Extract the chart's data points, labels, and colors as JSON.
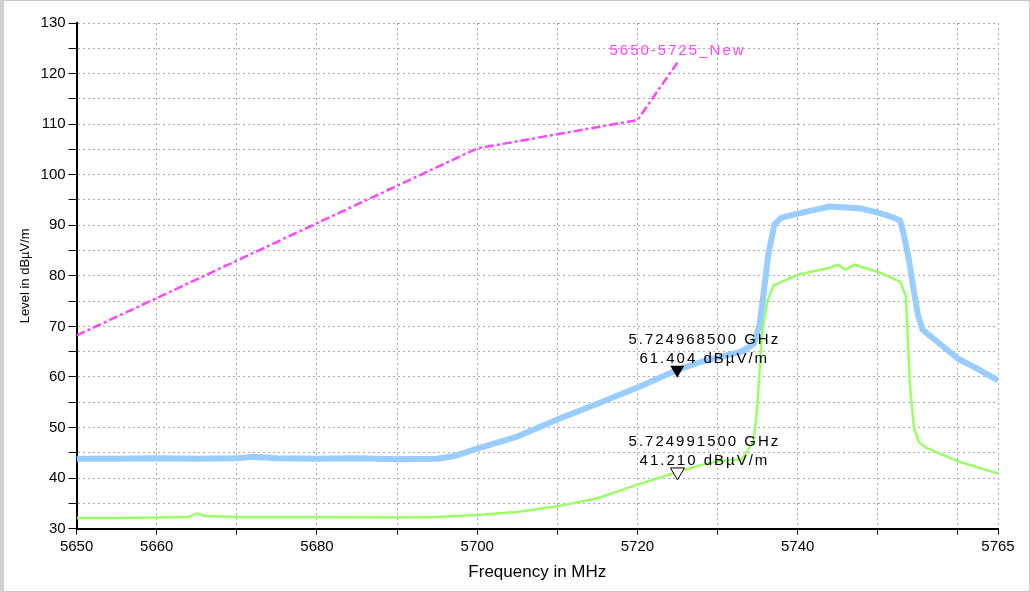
{
  "chart_data": {
    "type": "line",
    "xlabel": "Frequency in MHz",
    "ylabel": "Level in dBµV/m",
    "xlim": [
      5650,
      5765
    ],
    "xticks": [
      5650,
      5660,
      {
        "value": 5670,
        "label": null
      },
      5680,
      {
        "value": 5690,
        "label": null
      },
      5700,
      {
        "value": 5710,
        "label": null
      },
      5720,
      {
        "value": 5730,
        "label": null
      },
      5740,
      {
        "value": 5750,
        "label": null
      },
      {
        "value": 5760,
        "label": null
      },
      5765
    ],
    "ylim": [
      30,
      130
    ],
    "yticks": [
      30,
      {
        "value": 35,
        "label": null
      },
      40,
      {
        "value": 45,
        "label": null
      },
      50,
      {
        "value": 55,
        "label": null
      },
      60,
      {
        "value": 65,
        "label": null
      },
      70,
      {
        "value": 75,
        "label": null
      },
      80,
      {
        "value": 85,
        "label": null
      },
      90,
      {
        "value": 95,
        "label": null
      },
      100,
      {
        "value": 105,
        "label": null
      },
      110,
      {
        "value": 115,
        "label": null
      },
      120,
      {
        "value": 125,
        "label": null
      },
      130
    ],
    "grid": true,
    "legend": false,
    "marker": "none",
    "series": [
      {
        "color": "#99ccff",
        "x": [
          5650,
          5655,
          5660,
          5665,
          5670,
          5672,
          5675,
          5680,
          5685,
          5690,
          5695,
          5697,
          5700,
          5705,
          5710,
          5715,
          5720,
          5722,
          5725,
          5728,
          5730,
          5733,
          5734.5,
          5735.2,
          5735.7,
          5736.3,
          5737.1,
          5738,
          5740,
          5742,
          5744,
          5746,
          5748,
          5750,
          5752,
          5752.8,
          5753.4,
          5753.9,
          5754.5,
          5755,
          5755.6,
          5757,
          5760,
          5762,
          5765
        ],
        "values": [
          43.8,
          43.8,
          43.9,
          43.8,
          43.9,
          44.2,
          43.9,
          43.8,
          43.9,
          43.7,
          43.8,
          44.3,
          45.8,
          48.2,
          51.6,
          54.7,
          57.9,
          59.3,
          61.4,
          63,
          63.8,
          65,
          66.5,
          70,
          76,
          84,
          90.2,
          91.5,
          92.3,
          93,
          93.7,
          93.5,
          93.3,
          92.5,
          91.5,
          90.9,
          87,
          83,
          77,
          72.3,
          69.3,
          67.5,
          63.6,
          62,
          59.3
        ]
      },
      {
        "color": "#99ff66",
        "x": [
          5650,
          5655,
          5660,
          5664,
          5665,
          5666,
          5670,
          5680,
          5690,
          5695,
          5700,
          5705,
          5710,
          5715,
          5720,
          5725,
          5728,
          5730,
          5733,
          5734.5,
          5735,
          5735.5,
          5736.2,
          5737,
          5740,
          5744,
          5745,
          5746,
          5747,
          5750,
          5752.8,
          5753.5,
          5754,
          5754.5,
          5755.1,
          5756,
          5760,
          5765
        ],
        "values": [
          32.1,
          32.1,
          32.2,
          32.3,
          33,
          32.5,
          32.3,
          32.3,
          32.2,
          32.3,
          32.7,
          33.3,
          34.4,
          36,
          38.7,
          41.2,
          42.6,
          43.3,
          43.7,
          47.2,
          55,
          68,
          75,
          78.1,
          80.2,
          81.6,
          82.2,
          81.2,
          82.2,
          80.8,
          78.8,
          76,
          58.6,
          50,
          47.2,
          46,
          43.3,
          40.9
        ]
      },
      {
        "name": "5650-5725_New",
        "color": "#ff44ff",
        "line_style": "dashed",
        "x": [
          5650,
          5700,
          5720,
          5725
        ],
        "values": [
          68.2,
          105.2,
          110.8,
          122.2
        ]
      }
    ],
    "annotations": [
      {
        "text": "5.724968500 GHz\n61.404 dBµV/m",
        "x": 5724.9685,
        "y": 61.404
      },
      {
        "text": "5.724991500 GHz\n41.210 dBµV/m",
        "x": 5724.9915,
        "y": 41.21
      }
    ]
  }
}
